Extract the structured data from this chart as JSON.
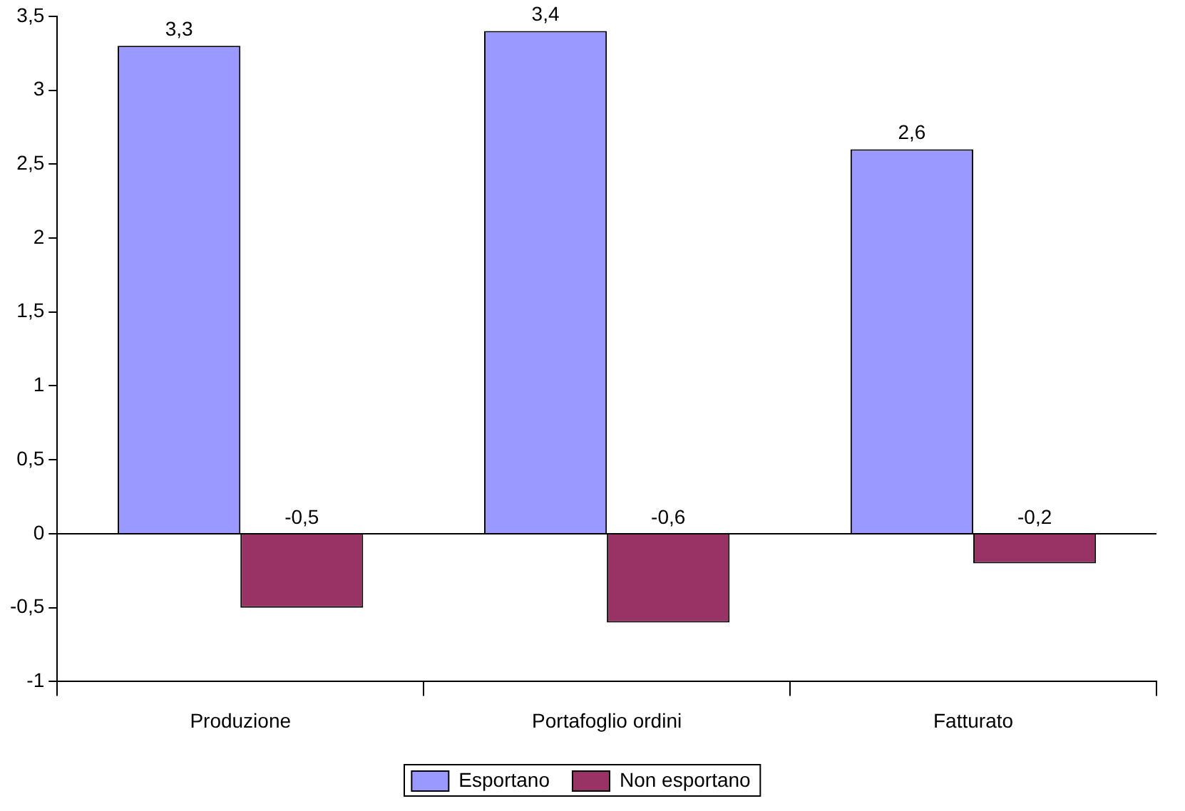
{
  "chart_data": {
    "type": "bar",
    "categories": [
      "Produzione",
      "Portafoglio ordini",
      "Fatturato"
    ],
    "series": [
      {
        "name": "Esportano",
        "color": "#9999ff",
        "values": [
          3.3,
          3.4,
          2.6
        ],
        "value_labels": [
          "3,3",
          "3,4",
          "2,6"
        ]
      },
      {
        "name": "Non esportano",
        "color": "#993366",
        "values": [
          -0.5,
          -0.6,
          -0.2
        ],
        "value_labels": [
          "-0,5",
          "-0,6",
          "-0,2"
        ]
      }
    ],
    "ylim": [
      -1,
      3.5
    ],
    "yticks": [
      {
        "value": -1,
        "label": "-1"
      },
      {
        "value": -0.5,
        "label": "-0,5"
      },
      {
        "value": 0,
        "label": "0"
      },
      {
        "value": 0.5,
        "label": "0,5"
      },
      {
        "value": 1,
        "label": "1"
      },
      {
        "value": 1.5,
        "label": "1,5"
      },
      {
        "value": 2,
        "label": "2"
      },
      {
        "value": 2.5,
        "label": "2,5"
      },
      {
        "value": 3,
        "label": "3"
      },
      {
        "value": 3.5,
        "label": "3,5"
      }
    ],
    "ref_lines": [
      {
        "axis": "y",
        "value": 0,
        "color": "#000000"
      }
    ],
    "grid": false,
    "legend": "bottom"
  }
}
